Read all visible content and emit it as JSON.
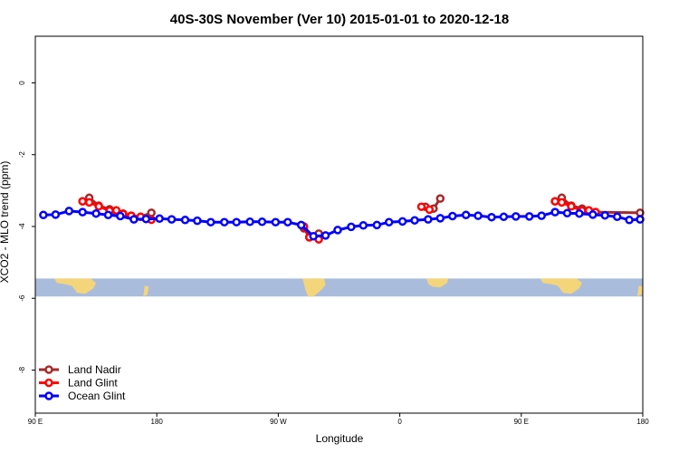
{
  "chart_data": {
    "type": "line",
    "title": "40S-30S November (Ver 10)   2015-01-01 to 2020-12-18",
    "xlabel": "Longitude",
    "ylabel": "XCO2 - MLO trend (ppm)",
    "xlim": [
      90,
      540
    ],
    "ylim": [
      -9.2,
      1.3
    ],
    "x_ticks": [
      {
        "value": 90,
        "label": "90 E"
      },
      {
        "value": 180,
        "label": "180"
      },
      {
        "value": 270,
        "label": "90 W"
      },
      {
        "value": 360,
        "label": "0"
      },
      {
        "value": 450,
        "label": "90 E"
      },
      {
        "value": 540,
        "label": "180"
      }
    ],
    "y_ticks": [
      {
        "value": 0,
        "label": "0"
      },
      {
        "value": -2,
        "label": "-2"
      },
      {
        "value": -4,
        "label": "-4"
      },
      {
        "value": -6,
        "label": "-6"
      },
      {
        "value": -8,
        "label": "-8"
      }
    ],
    "legend_position": "bottom-left",
    "map_strip": {
      "y_range": [
        -5.95,
        -5.45
      ],
      "ocean_color": "#a9bcdc",
      "land_color": "#f5d57a"
    },
    "series": [
      {
        "name": "Land Nadir",
        "color": "#a52a2a",
        "segments": [
          [
            [
              125,
              -3.3
            ],
            [
              130,
              -3.2
            ],
            [
              137,
              -3.42
            ],
            [
              145,
              -3.52
            ],
            [
              150,
              -3.6
            ],
            [
              155,
              -3.64
            ],
            [
              161,
              -3.7
            ],
            [
              168,
              -3.73
            ],
            [
              176,
              -3.62
            ]
          ],
          [
            [
              289,
              -4.05
            ],
            [
              293,
              -4.3
            ],
            [
              300,
              -4.2
            ]
          ],
          [
            [
              379,
              -3.45
            ],
            [
              385,
              -3.5
            ],
            [
              390,
              -3.22
            ]
          ],
          [
            [
              475,
              -3.3
            ],
            [
              480,
              -3.2
            ],
            [
              487,
              -3.42
            ],
            [
              495,
              -3.5
            ],
            [
              500,
              -3.55
            ],
            [
              505,
              -3.6
            ],
            [
              538,
              -3.62
            ]
          ]
        ]
      },
      {
        "name": "Land Glint",
        "color": "#ff0000",
        "segments": [
          [
            [
              125,
              -3.3
            ],
            [
              130,
              -3.33
            ],
            [
              137,
              -3.44
            ],
            [
              145,
              -3.56
            ],
            [
              150,
              -3.55
            ],
            [
              155,
              -3.65
            ],
            [
              161,
              -3.7
            ],
            [
              168,
              -3.73
            ],
            [
              176,
              -3.81
            ]
          ],
          [
            [
              289,
              -4.0
            ],
            [
              293,
              -4.3
            ],
            [
              300,
              -4.36
            ]
          ],
          [
            [
              376,
              -3.45
            ],
            [
              382,
              -3.53
            ]
          ],
          [
            [
              475,
              -3.3
            ],
            [
              480,
              -3.33
            ],
            [
              487,
              -3.44
            ],
            [
              495,
              -3.56
            ],
            [
              500,
              -3.55
            ],
            [
              505,
              -3.6
            ]
          ]
        ]
      },
      {
        "name": "Ocean Glint",
        "color": "#0000ff",
        "segments": [
          [
            [
              96,
              -3.68
            ],
            [
              105,
              -3.67
            ],
            [
              115,
              -3.57
            ],
            [
              125,
              -3.6
            ],
            [
              135,
              -3.64
            ],
            [
              144,
              -3.68
            ],
            [
              153,
              -3.71
            ],
            [
              163,
              -3.8
            ],
            [
              172,
              -3.79
            ],
            [
              182,
              -3.78
            ],
            [
              191,
              -3.8
            ],
            [
              201,
              -3.82
            ],
            [
              210,
              -3.84
            ],
            [
              220,
              -3.88
            ],
            [
              230,
              -3.88
            ],
            [
              239,
              -3.88
            ],
            [
              249,
              -3.87
            ],
            [
              258,
              -3.87
            ],
            [
              268,
              -3.88
            ],
            [
              277,
              -3.88
            ],
            [
              287,
              -3.96
            ],
            [
              296,
              -4.27
            ],
            [
              305,
              -4.25
            ],
            [
              314,
              -4.1
            ],
            [
              324,
              -4.01
            ],
            [
              333,
              -3.97
            ],
            [
              343,
              -3.96
            ],
            [
              352,
              -3.88
            ],
            [
              362,
              -3.86
            ],
            [
              371,
              -3.83
            ],
            [
              381,
              -3.8
            ],
            [
              390,
              -3.77
            ],
            [
              399,
              -3.71
            ],
            [
              409,
              -3.68
            ],
            [
              418,
              -3.7
            ],
            [
              428,
              -3.74
            ],
            [
              437,
              -3.73
            ],
            [
              446,
              -3.72
            ],
            [
              456,
              -3.72
            ],
            [
              465,
              -3.7
            ],
            [
              475,
              -3.6
            ],
            [
              484,
              -3.63
            ],
            [
              493,
              -3.64
            ],
            [
              503,
              -3.67
            ],
            [
              512,
              -3.69
            ],
            [
              521,
              -3.73
            ],
            [
              530,
              -3.82
            ],
            [
              538,
              -3.8
            ]
          ]
        ]
      }
    ]
  }
}
